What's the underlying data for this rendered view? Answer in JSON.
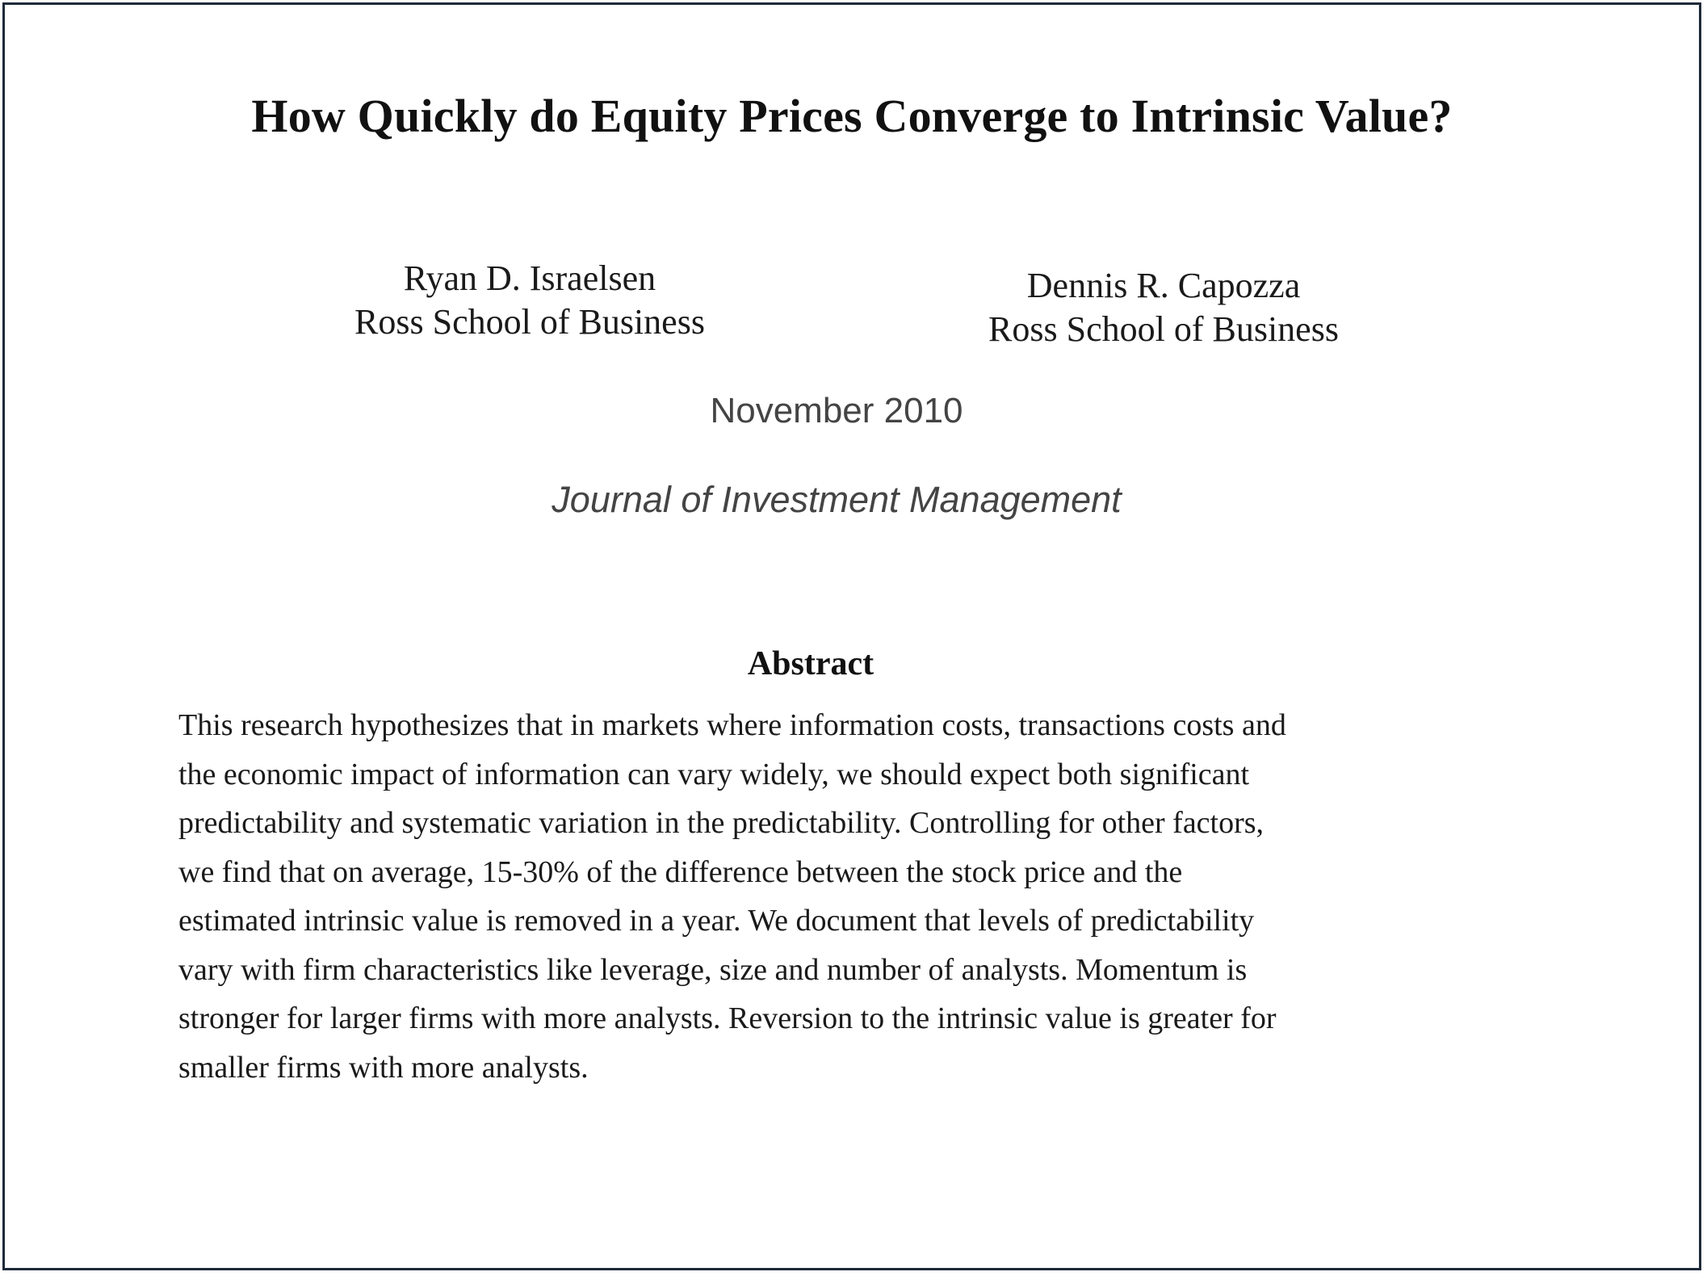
{
  "paper": {
    "title": "How Quickly do Equity Prices Converge to Intrinsic Value?",
    "authors": [
      {
        "name": "Ryan D. Israelsen",
        "affiliation": "Ross School of Business"
      },
      {
        "name": "Dennis R. Capozza",
        "affiliation": "Ross School of Business"
      }
    ],
    "date": "November 2010",
    "journal": "Journal of Investment Management",
    "abstract_heading": "Abstract",
    "abstract_lines": [
      "This research hypothesizes that in markets where information costs, transactions costs and",
      "the economic impact of information can vary widely, we should expect both significant",
      "predictability and systematic variation in the predictability.  Controlling for other factors,",
      "we find that on average, 15-30% of the difference between the stock price and the",
      "estimated intrinsic value is removed in a year.  We document that levels of predictability",
      "vary with firm characteristics like leverage, size and number of analysts.  Momentum is",
      "stronger for larger firms with more analysts.  Reversion to the intrinsic value is greater for",
      "smaller firms with more analysts."
    ]
  },
  "colors": {
    "border": "#1e2a3a",
    "text": "#1a1a1a",
    "muted_text": "#444444"
  }
}
